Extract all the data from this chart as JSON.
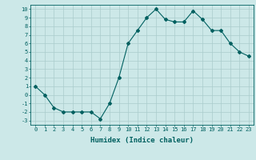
{
  "x": [
    0,
    1,
    2,
    3,
    4,
    5,
    6,
    7,
    8,
    9,
    10,
    11,
    12,
    13,
    14,
    15,
    16,
    17,
    18,
    19,
    20,
    21,
    22,
    23
  ],
  "y": [
    1.0,
    0.0,
    -1.5,
    -2.0,
    -2.0,
    -2.0,
    -2.0,
    -2.8,
    -1.0,
    2.0,
    6.0,
    7.5,
    9.0,
    10.0,
    8.8,
    8.5,
    8.5,
    9.8,
    8.8,
    7.5,
    7.5,
    6.0,
    5.0,
    4.5
  ],
  "line_color": "#006060",
  "marker": "D",
  "marker_size": 2,
  "bg_color": "#cce8e8",
  "grid_color": "#aacccc",
  "xlabel": "Humidex (Indice chaleur)",
  "xlim": [
    -0.5,
    23.5
  ],
  "ylim": [
    -3.5,
    10.5
  ],
  "xticks": [
    0,
    1,
    2,
    3,
    4,
    5,
    6,
    7,
    8,
    9,
    10,
    11,
    12,
    13,
    14,
    15,
    16,
    17,
    18,
    19,
    20,
    21,
    22,
    23
  ],
  "yticks": [
    -3,
    -2,
    -1,
    0,
    1,
    2,
    3,
    4,
    5,
    6,
    7,
    8,
    9,
    10
  ],
  "tick_fontsize": 5,
  "xlabel_fontsize": 6.5
}
